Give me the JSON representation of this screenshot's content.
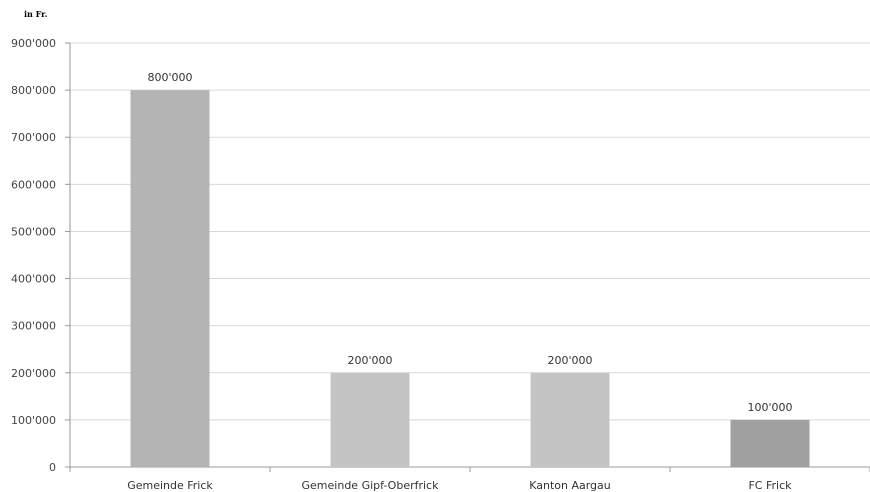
{
  "chart_data": {
    "type": "bar",
    "unit_label": "in Fr.",
    "categories": [
      "Gemeinde Frick",
      "Gemeinde Gipf-Oberfrick",
      "Kanton Aargau",
      "FC Frick"
    ],
    "values": [
      800000,
      200000,
      200000,
      100000
    ],
    "data_labels": [
      "800'000",
      "200'000",
      "200'000",
      "100'000"
    ],
    "ylim": [
      0,
      900000
    ],
    "yticks": [
      0,
      100000,
      200000,
      300000,
      400000,
      500000,
      600000,
      700000,
      800000,
      900000
    ],
    "ytick_labels": [
      "0",
      "100'000",
      "200'000",
      "300'000",
      "400'000",
      "500'000",
      "600'000",
      "700'000",
      "800'000",
      "900'000"
    ],
    "bar_colors": [
      "#b4b4b4",
      "#c4c4c4",
      "#c4c4c4",
      "#a0a0a0"
    ],
    "grid": true,
    "legend": "none"
  }
}
